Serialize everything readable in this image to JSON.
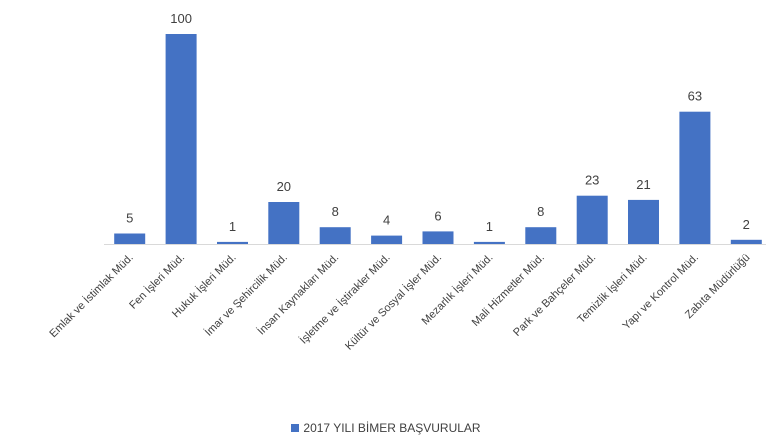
{
  "chart_data": {
    "type": "bar",
    "categories": [
      "Emlak ve İstimlak Müd.",
      "Fen İşleri Müd.",
      "Hukuk İşleri Müd.",
      "İmar ve Şehircilik Müd.",
      "İnsan Kaynakları Müd.",
      "İşletme ve İştirakler Müd.",
      "Kültür ve Sosyal İşler Müd.",
      "Mezarlık İşleri Müd.",
      "Mali Hizmetler Müd.",
      "Park ve Bahçeler Müd.",
      "Temizlik İşleri Müd.",
      "Yapı ve Kontrol Müd.",
      "Zabıta Müdürlüğü"
    ],
    "series": [
      {
        "name": "2017 YILI BİMER BAŞVURULAR",
        "values": [
          5,
          100,
          1,
          20,
          8,
          4,
          6,
          1,
          8,
          23,
          21,
          63,
          2
        ],
        "color": "#4472c4"
      }
    ],
    "data_labels": [
      "5",
      "100",
      "1",
      "20",
      "8",
      "4",
      "6",
      "1",
      "8",
      "23",
      "21",
      "63",
      "2"
    ],
    "ylim": [
      0,
      100
    ],
    "grid": false,
    "legend_position": "bottom"
  }
}
